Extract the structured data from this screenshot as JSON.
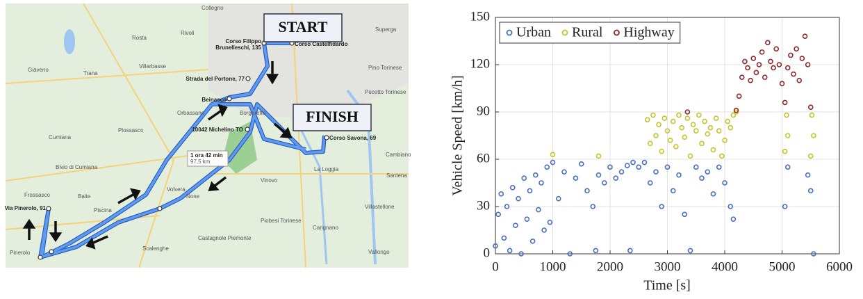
{
  "map": {
    "labels": [
      "START",
      "FINISH",
      "Corso Filippo",
      "Brunelleschi, 135",
      "Corso Castelfidardo",
      "Strada del Portone, 77",
      "Beinasco",
      "10042 Nichelino TO",
      "Corso Savona, 69",
      "1 ora 42 min",
      "97,5 km",
      "Via Pinerolo, 91",
      "Collegno",
      "Rivoli",
      "Rosta",
      "Trana",
      "Villarbasse",
      "Giaveno",
      "Orbassano",
      "Piossasco",
      "Cumiana",
      "Volvera",
      "None",
      "Vinovo",
      "La Loggia",
      "Pinerolo",
      "Frossasco",
      "Piscina",
      "Scalenghe",
      "Castagnole Piemonte",
      "Cambiano",
      "Santena",
      "Villastellone",
      "Carignano",
      "Vallongo",
      "Pino Torinese",
      "Pecetto Torinese",
      "Superga",
      "Baite",
      "Bivio di Cumiana",
      "Piobesi Torinese",
      "Borgaretto"
    ]
  },
  "chart_data": {
    "type": "scatter",
    "xlabel": "Time [s]",
    "ylabel": "Vehicle Speed [km/h]",
    "xlim": [
      0,
      6000
    ],
    "ylim": [
      0,
      150
    ],
    "xticks": [
      0,
      1000,
      2000,
      3000,
      4000,
      5000,
      6000
    ],
    "yticks": [
      0,
      30,
      60,
      90,
      120,
      150
    ],
    "grid": true,
    "legend": "upper left",
    "series": [
      {
        "name": "Urban",
        "color": "#4a6fbf",
        "x": [
          0,
          50,
          100,
          150,
          200,
          250,
          300,
          350,
          400,
          450,
          500,
          550,
          600,
          650,
          700,
          750,
          800,
          850,
          900,
          950,
          1000,
          1100,
          1200,
          1300,
          1400,
          1500,
          1600,
          1700,
          1750,
          1800,
          1900,
          2000,
          2100,
          2200,
          2300,
          2350,
          2400,
          2500,
          2600,
          2700,
          2800,
          2900,
          3000,
          3100,
          3200,
          3300,
          3400,
          3500,
          3600,
          3700,
          3800,
          3900,
          4000,
          4100,
          4150,
          5050,
          5100,
          5450,
          5500,
          5550
        ],
        "values": [
          5,
          25,
          38,
          10,
          30,
          2,
          42,
          18,
          35,
          0,
          48,
          22,
          40,
          8,
          50,
          28,
          45,
          15,
          55,
          20,
          58,
          35,
          52,
          0,
          48,
          57,
          40,
          30,
          2,
          50,
          45,
          55,
          48,
          52,
          56,
          2,
          58,
          55,
          58,
          45,
          52,
          30,
          55,
          40,
          50,
          25,
          2,
          55,
          48,
          52,
          38,
          55,
          45,
          30,
          22,
          30,
          55,
          50,
          40,
          0
        ]
      },
      {
        "name": "Rural",
        "color": "#c5c42a",
        "x": [
          1000,
          1800,
          2650,
          2700,
          2750,
          2800,
          2850,
          2900,
          2950,
          3000,
          3050,
          3100,
          3150,
          3200,
          3250,
          3300,
          3350,
          3400,
          3450,
          3500,
          3550,
          3600,
          3650,
          3700,
          3750,
          3800,
          3850,
          3900,
          3950,
          4000,
          4050,
          4100,
          4150,
          4200,
          5050,
          5080,
          5100,
          5500,
          5520,
          5550
        ],
        "values": [
          63,
          62,
          85,
          70,
          88,
          75,
          82,
          65,
          86,
          78,
          72,
          84,
          68,
          88,
          80,
          74,
          86,
          62,
          82,
          78,
          88,
          70,
          84,
          76,
          80,
          66,
          86,
          78,
          62,
          72,
          84,
          80,
          88,
          90,
          65,
          88,
          75,
          62,
          88,
          75
        ]
      },
      {
        "name": "Highway",
        "color": "#8b2a2a",
        "x": [
          3350,
          4200,
          4250,
          4300,
          4350,
          4400,
          4450,
          4500,
          4550,
          4600,
          4650,
          4700,
          4750,
          4800,
          4850,
          4900,
          4950,
          5000,
          5050,
          5100,
          5150,
          5200,
          5250,
          5300,
          5350,
          5400,
          5450,
          5500
        ],
        "values": [
          90,
          91,
          100,
          112,
          122,
          118,
          110,
          124,
          115,
          120,
          128,
          112,
          134,
          122,
          118,
          130,
          120,
          108,
          96,
          118,
          126,
          114,
          130,
          110,
          124,
          138,
          120,
          93
        ]
      }
    ]
  }
}
